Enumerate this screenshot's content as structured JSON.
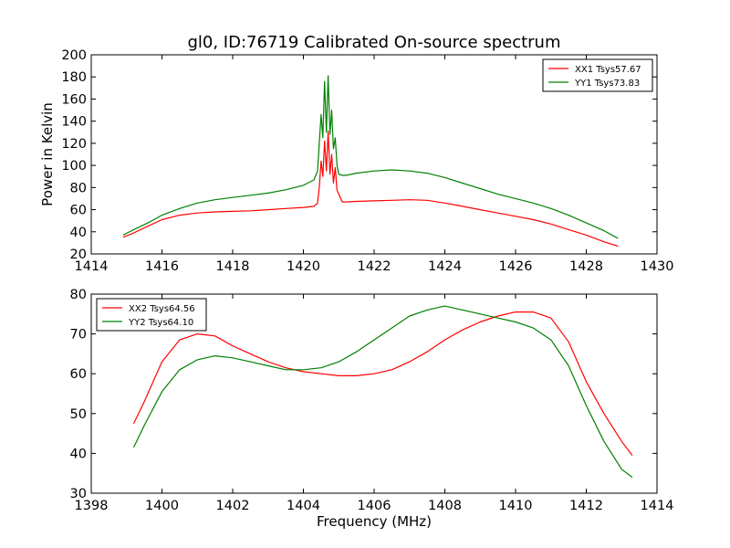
{
  "title": "gl0, ID:76719 Calibrated On-source spectrum",
  "colors": {
    "xx": "#ff0000",
    "yy": "#008000",
    "frame": "#000000"
  },
  "chart_data": [
    {
      "type": "line",
      "ylabel": "Power in Kelvin",
      "xlabel": "",
      "xlim": [
        1414,
        1430
      ],
      "ylim": [
        20,
        200
      ],
      "xticks": [
        1414,
        1416,
        1418,
        1420,
        1422,
        1424,
        1426,
        1428,
        1430
      ],
      "yticks": [
        20,
        40,
        60,
        80,
        100,
        120,
        140,
        160,
        180,
        200
      ],
      "legend_position": "top-right",
      "grid": false,
      "series": [
        {
          "name": "XX1 Tsys57.67",
          "color": "#ff0000",
          "x": [
            1414.9,
            1415.2,
            1415.6,
            1416.0,
            1416.5,
            1417.0,
            1417.5,
            1418.0,
            1418.5,
            1419.0,
            1419.5,
            1420.0,
            1420.3,
            1420.4,
            1420.45,
            1420.5,
            1420.55,
            1420.6,
            1420.65,
            1420.7,
            1420.75,
            1420.8,
            1420.85,
            1420.9,
            1420.95,
            1421.0,
            1421.1,
            1421.2,
            1421.5,
            1422.0,
            1422.5,
            1423.0,
            1423.5,
            1424.0,
            1424.5,
            1425.0,
            1425.5,
            1426.0,
            1426.5,
            1427.0,
            1427.5,
            1428.0,
            1428.5,
            1428.9
          ],
          "y": [
            35,
            39,
            45,
            51,
            55,
            57,
            58,
            58.5,
            59,
            60,
            61,
            62,
            63,
            66,
            80,
            104,
            90,
            122,
            95,
            131,
            92,
            110,
            84,
            98,
            78,
            74,
            67,
            67,
            67.5,
            68,
            68.5,
            69,
            68.5,
            66,
            63,
            60,
            57,
            54,
            51,
            47,
            42,
            37,
            31,
            27
          ]
        },
        {
          "name": "YY1 Tsys73.83",
          "color": "#008000",
          "x": [
            1414.9,
            1415.2,
            1415.6,
            1416.0,
            1416.5,
            1417.0,
            1417.5,
            1418.0,
            1418.5,
            1419.0,
            1419.5,
            1420.0,
            1420.3,
            1420.4,
            1420.45,
            1420.5,
            1420.55,
            1420.6,
            1420.65,
            1420.7,
            1420.75,
            1420.8,
            1420.85,
            1420.9,
            1420.95,
            1421.0,
            1421.1,
            1421.2,
            1421.5,
            1422.0,
            1422.5,
            1423.0,
            1423.5,
            1424.0,
            1424.5,
            1425.0,
            1425.5,
            1426.0,
            1426.5,
            1427.0,
            1427.5,
            1428.0,
            1428.5,
            1428.9
          ],
          "y": [
            37,
            42,
            48,
            55,
            61,
            66,
            69,
            71,
            73,
            75,
            78,
            82,
            87,
            95,
            120,
            146,
            125,
            176,
            130,
            181,
            128,
            150,
            115,
            125,
            100,
            92,
            91,
            91,
            93,
            95,
            96,
            95,
            93,
            89,
            84,
            79,
            74,
            70,
            66,
            61,
            55,
            48,
            41,
            34
          ]
        }
      ]
    },
    {
      "type": "line",
      "xlabel": "Frequency (MHz)",
      "ylabel": "",
      "xlim": [
        1398,
        1414
      ],
      "ylim": [
        30,
        80
      ],
      "xticks": [
        1398,
        1400,
        1402,
        1404,
        1406,
        1408,
        1410,
        1412,
        1414
      ],
      "yticks": [
        30,
        40,
        50,
        60,
        70,
        80
      ],
      "legend_position": "top-left",
      "grid": false,
      "series": [
        {
          "name": "XX2 Tsys64.56",
          "color": "#ff0000",
          "x": [
            1399.2,
            1399.5,
            1400.0,
            1400.5,
            1401.0,
            1401.5,
            1402.0,
            1402.5,
            1403.0,
            1403.5,
            1404.0,
            1404.5,
            1405.0,
            1405.5,
            1406.0,
            1406.5,
            1407.0,
            1407.5,
            1408.0,
            1408.5,
            1409.0,
            1409.5,
            1410.0,
            1410.5,
            1411.0,
            1411.5,
            1412.0,
            1412.5,
            1413.0,
            1413.3
          ],
          "y": [
            47.5,
            53,
            63,
            68.5,
            70,
            69.5,
            67,
            65,
            63,
            61.5,
            60.5,
            60,
            59.5,
            59.5,
            60,
            61,
            63,
            65.5,
            68.5,
            71,
            73,
            74.5,
            75.5,
            75.5,
            74,
            68,
            58,
            50,
            43,
            39.5
          ]
        },
        {
          "name": "YY2 Tsys64.10",
          "color": "#008000",
          "x": [
            1399.2,
            1399.5,
            1400.0,
            1400.5,
            1401.0,
            1401.5,
            1402.0,
            1402.5,
            1403.0,
            1403.5,
            1404.0,
            1404.5,
            1405.0,
            1405.5,
            1406.0,
            1406.5,
            1407.0,
            1407.5,
            1408.0,
            1408.5,
            1409.0,
            1409.5,
            1410.0,
            1410.5,
            1411.0,
            1411.5,
            1412.0,
            1412.5,
            1413.0,
            1413.3
          ],
          "y": [
            41.5,
            47,
            55.5,
            61,
            63.5,
            64.5,
            64,
            63,
            62,
            61,
            61,
            61.5,
            63,
            65.5,
            68.5,
            71.5,
            74.5,
            76,
            77,
            76,
            75,
            74,
            73,
            71.5,
            68.5,
            62,
            52,
            43,
            36,
            34
          ]
        }
      ]
    }
  ]
}
